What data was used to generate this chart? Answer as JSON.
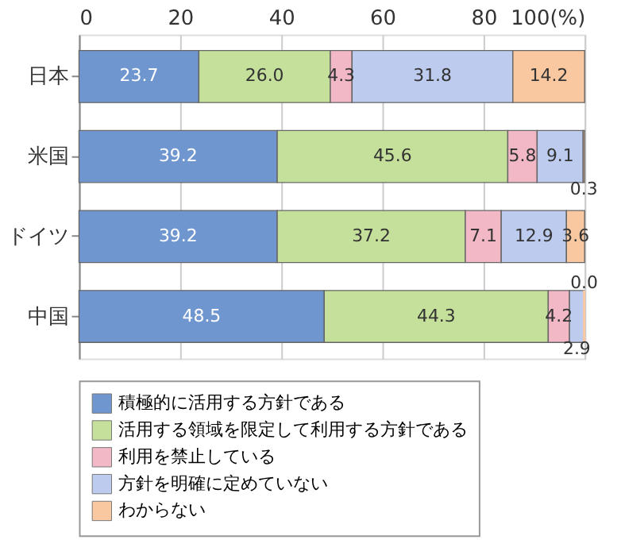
{
  "chart_data": {
    "type": "bar",
    "orientation": "horizontal",
    "stacked": true,
    "categories": [
      "日本",
      "米国",
      "ドイツ",
      "中国"
    ],
    "series": [
      {
        "name": "積極的に活用する方針である",
        "color": "#7096d0",
        "values": [
          23.7,
          39.2,
          39.2,
          48.5
        ],
        "value_labels": [
          "23.7",
          "39.2",
          "39.2",
          "48.5"
        ]
      },
      {
        "name": "活用する領域を限定して利用する方針である",
        "color": "#c4e09a",
        "values": [
          26.0,
          45.6,
          37.2,
          44.3
        ],
        "value_labels": [
          "26.0",
          "45.6",
          "37.2",
          "44.3"
        ]
      },
      {
        "name": "利用を禁止している",
        "color": "#f2b8c6",
        "values": [
          4.3,
          5.8,
          7.1,
          4.2
        ],
        "value_labels": [
          "4.3",
          "5.8",
          "7.1",
          "4.2"
        ]
      },
      {
        "name": "方針を明確に定めていない",
        "color": "#bccbee",
        "values": [
          31.8,
          9.1,
          12.9,
          2.9
        ],
        "value_labels": [
          "31.8",
          "9.1",
          "12.9",
          "2.9"
        ]
      },
      {
        "name": "わからない",
        "color": "#f9c8a0",
        "values": [
          14.2,
          0.3,
          3.6,
          0.0
        ],
        "value_labels": [
          "14.2",
          "0.3",
          "3.6",
          "0.0"
        ]
      }
    ],
    "xlim": [
      0,
      100
    ],
    "xticks": [
      0,
      20,
      40,
      60,
      80,
      {
        "value": 100,
        "label": "100(%)"
      }
    ],
    "grid": "x",
    "legend": "bottom"
  }
}
